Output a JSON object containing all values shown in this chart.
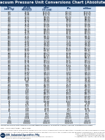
{
  "title": "Vacuum Pressure Unit Conversions Chart (Absolute)",
  "bg_color": "#ffffff",
  "header_bg": "#c6d9f0",
  "alt_row_bg": "#dce6f1",
  "col_headers": [
    "Torr\n(mm Hg)",
    "in Hg\n(inches\nMercury)",
    "mBar\n(SI unit)",
    "kPa",
    "millibar"
  ],
  "rows": [
    [
      "760",
      "29.92",
      "1013.25",
      "101.33",
      "1013.25"
    ],
    [
      "759",
      "29.88",
      "1011.92",
      "101.19",
      "1011.92"
    ],
    [
      "750",
      "29.53",
      "999.98",
      "100.00",
      "999.98"
    ],
    [
      "740",
      "29.13",
      "986.64",
      "98.66",
      "986.64"
    ],
    [
      "730",
      "28.74",
      "973.30",
      "97.33",
      "973.30"
    ],
    [
      "720",
      "28.35",
      "959.96",
      "96.00",
      "959.96"
    ],
    [
      "700",
      "27.56",
      "933.28",
      "93.33",
      "933.28"
    ],
    [
      "680",
      "26.77",
      "906.59",
      "90.66",
      "906.59"
    ],
    [
      "660",
      "25.98",
      "879.91",
      "87.99",
      "879.91"
    ],
    [
      "640",
      "25.20",
      "853.23",
      "85.32",
      "853.23"
    ],
    [
      "620",
      "24.41",
      "826.55",
      "82.66",
      "826.55"
    ],
    [
      "600",
      "23.62",
      "799.86",
      "79.99",
      "799.86"
    ],
    [
      "580",
      "22.83",
      "773.18",
      "77.32",
      "773.18"
    ],
    [
      "560",
      "22.05",
      "746.50",
      "74.65",
      "746.50"
    ],
    [
      "540",
      "21.26",
      "719.82",
      "71.98",
      "719.82"
    ],
    [
      "520",
      "20.47",
      "693.13",
      "69.31",
      "693.13"
    ],
    [
      "500",
      "19.69",
      "666.45",
      "66.65",
      "666.45"
    ],
    [
      "480",
      "18.90",
      "639.77",
      "63.98",
      "639.77"
    ],
    [
      "460",
      "18.11",
      "613.09",
      "61.31",
      "613.09"
    ],
    [
      "440",
      "17.32",
      "586.41",
      "58.64",
      "586.41"
    ],
    [
      "420",
      "16.54",
      "559.72",
      "55.97",
      "559.72"
    ],
    [
      "400",
      "15.75",
      "533.04",
      "53.30",
      "533.04"
    ],
    [
      "380",
      "14.96",
      "506.36",
      "50.64",
      "506.36"
    ],
    [
      "360",
      "14.17",
      "479.68",
      "47.97",
      "479.68"
    ],
    [
      "340",
      "13.39",
      "452.99",
      "45.30",
      "452.99"
    ],
    [
      "320",
      "12.60",
      "426.31",
      "42.63",
      "426.31"
    ],
    [
      "300",
      "11.81",
      "399.63",
      "39.96",
      "399.63"
    ],
    [
      "280",
      "11.02",
      "372.95",
      "37.30",
      "372.95"
    ],
    [
      "260",
      "10.24",
      "346.26",
      "34.63",
      "346.26"
    ],
    [
      "240",
      "9.45",
      "319.58",
      "31.96",
      "319.58"
    ],
    [
      "220",
      "8.66",
      "292.90",
      "29.29",
      "292.90"
    ],
    [
      "200",
      "7.87",
      "266.22",
      "26.62",
      "266.22"
    ],
    [
      "180",
      "7.09",
      "239.53",
      "23.95",
      "239.53"
    ],
    [
      "160",
      "6.30",
      "212.85",
      "21.29",
      "212.85"
    ],
    [
      "140",
      "5.51",
      "186.17",
      "18.62",
      "186.17"
    ],
    [
      "120",
      "4.72",
      "159.49",
      "15.95",
      "159.49"
    ],
    [
      "100",
      "3.94",
      "133.26",
      "13.33",
      "133.26"
    ],
    [
      "80",
      "3.15",
      "106.66",
      "10.67",
      "106.66"
    ],
    [
      "60",
      "2.36",
      "79.99",
      "8.00",
      "79.99"
    ],
    [
      "40",
      "1.57",
      "53.33",
      "5.33",
      "53.33"
    ],
    [
      "20",
      "0.79",
      "26.66",
      "2.67",
      "26.66"
    ],
    [
      "10",
      "0.39",
      "13.33",
      "1.33",
      "13.33"
    ],
    [
      "5",
      "0.20",
      "6.67",
      "0.667",
      "6.67"
    ],
    [
      "1",
      "0.04",
      "1.33",
      "0.133",
      "1.33"
    ],
    [
      "0.1",
      "0.004",
      "0.133",
      "0.0133",
      "0.133"
    ],
    [
      "0.01",
      "0.0004",
      "0.0133",
      "0.00133",
      "0.0133"
    ],
    [
      "0.001",
      "0.00004",
      "0.00133",
      "0.000133",
      "0.00133"
    ]
  ],
  "note1": "Perfect vacuum is 100% vacuum & current reference pressure. In practice, a perfect vacuum is impossible to obtain.",
  "note2": "KPa = kilo x 1000; mbar = bar x 1000",
  "footer1": "For the sole accountability of the authors therefore and users is sole responsible for the specific applications. Information provided is for general guidance only and should not be",
  "footer2": "used for design or specification purposes, where accuracy is important, please verify the information with the equipment manufacturer or other reliable sources. Information provided is for general guidance only.",
  "logo_line1": "ISM  Industrial Specialties Mfg",
  "logo_line2": "Level 1B (ABD) Specialties",
  "logo_line3": "Excellence Department of Commerce, Trusted by Medical Components",
  "logo_line4": "ISO 9001:2008 Certified Organization",
  "right_line1": "2001 S. Cherry, Englewood, CO 80110",
  "right_line2": "info@ism-usa.com | ismvacuum.com",
  "right_line3": "© Copyright 2011 Industrial Specialties Mfg"
}
